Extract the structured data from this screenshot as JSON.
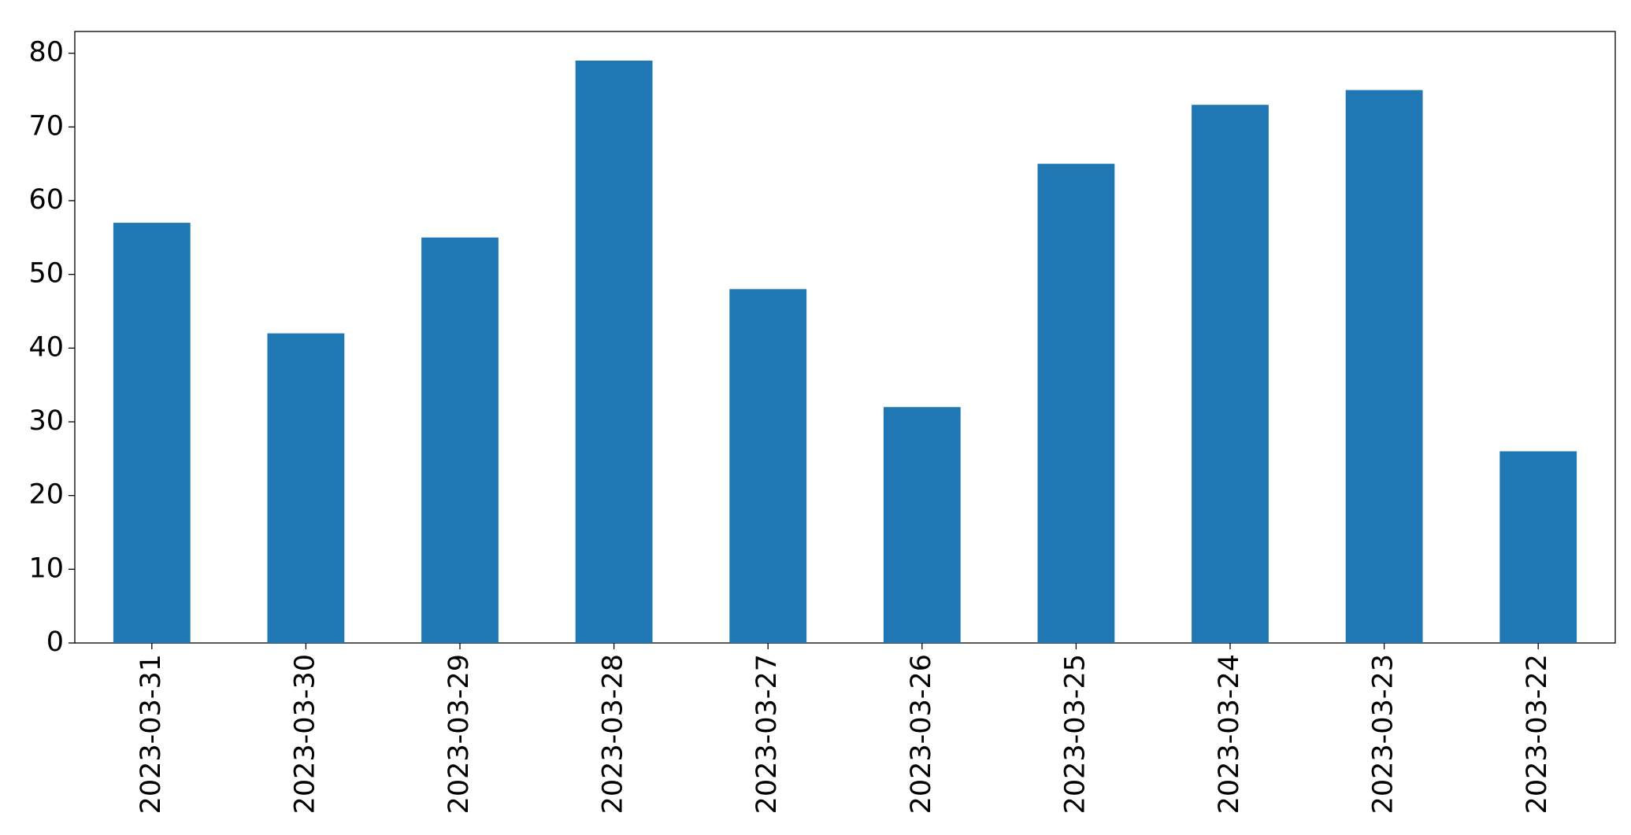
{
  "chart_data": {
    "type": "bar",
    "categories": [
      "2023-03-31",
      "2023-03-30",
      "2023-03-29",
      "2023-03-28",
      "2023-03-27",
      "2023-03-26",
      "2023-03-25",
      "2023-03-24",
      "2023-03-23",
      "2023-03-22"
    ],
    "values": [
      57,
      42,
      55,
      79,
      48,
      32,
      65,
      73,
      75,
      26
    ],
    "color": "#1f77b4",
    "ylim": [
      0,
      82.95
    ],
    "yticks": [
      0,
      10,
      20,
      30,
      40,
      50,
      60,
      70,
      80
    ],
    "grid": false
  }
}
